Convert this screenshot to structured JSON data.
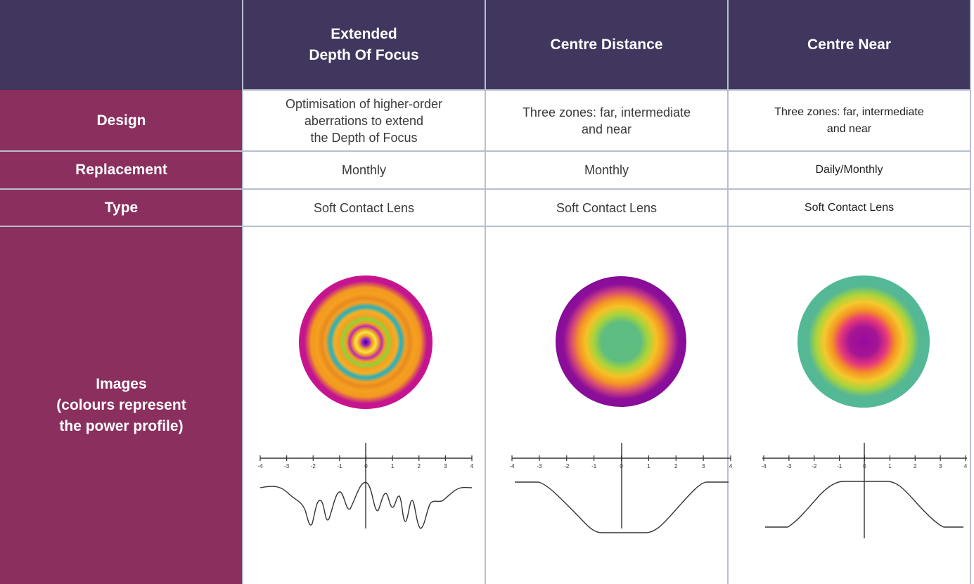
{
  "columns": [
    {
      "header": "Extended\nDepth Of Focus"
    },
    {
      "header": "Centre Distance"
    },
    {
      "header": "Centre Near"
    }
  ],
  "rows": {
    "design": {
      "label": "Design",
      "values": [
        "Optimisation of higher-order\naberrations to extend\nthe Depth of Focus",
        "Three zones: far, intermediate\nand near",
        "Three zones: far, intermediate\nand near"
      ]
    },
    "replacement": {
      "label": "Replacement",
      "values": [
        "Monthly",
        "Monthly",
        "Daily/Monthly"
      ]
    },
    "type": {
      "label": "Type",
      "values": [
        "Soft Contact Lens",
        "Soft Contact Lens",
        "Soft Contact Lens"
      ]
    },
    "images": {
      "label": "Images\n(colours represent\nthe power profile)"
    }
  },
  "axis_ticks": [
    "-4",
    "-3",
    "-2",
    "-1",
    "0",
    "1",
    "2",
    "3",
    "4"
  ],
  "colors": {
    "header_bg": "#41375e",
    "row_header_bg": "#8a2f5e",
    "grid_line": "#b6bfcf"
  }
}
